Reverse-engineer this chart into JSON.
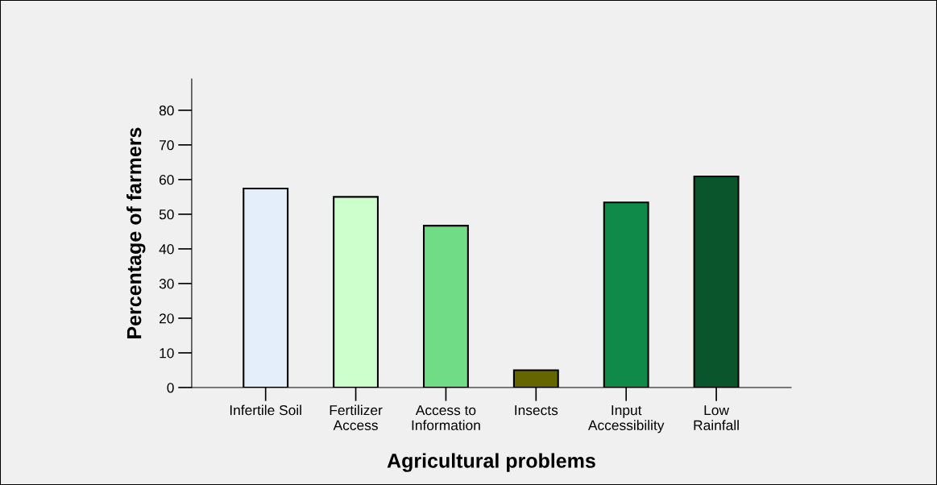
{
  "chart_data": {
    "type": "bar",
    "xlabel": "Agricultural problems",
    "ylabel": "Percentage of farmers",
    "categories": [
      "Infertile Soil",
      "Fertilizer\nAccess",
      "Access to\nInformation",
      "Insects",
      "Input\nAccessibility",
      "Low\nRainfall"
    ],
    "values": [
      57.4,
      55.0,
      46.7,
      5.0,
      53.4,
      60.9
    ],
    "colors": [
      "#e3eefa",
      "#ccffcc",
      "#70dc86",
      "#666600",
      "#108a48",
      "#0b552d"
    ],
    "ylim": [
      0,
      89
    ],
    "yticks": [
      0,
      10,
      20,
      30,
      40,
      50,
      60,
      70,
      80
    ],
    "grid": false,
    "legend": false
  }
}
